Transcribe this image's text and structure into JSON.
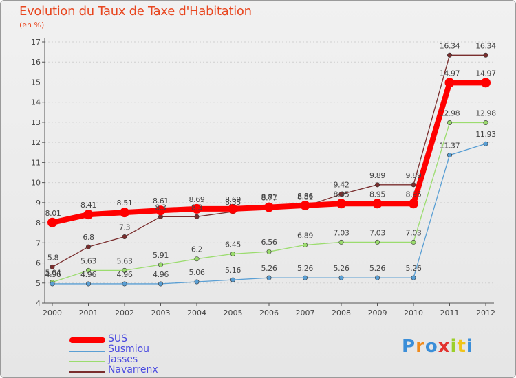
{
  "chart_data": {
    "type": "line",
    "title": "Evolution du Taux de Taxe d'Habitation",
    "ylabel": "(en %)",
    "xlabel": "",
    "ylim": [
      4,
      17
    ],
    "yticks": [
      4,
      5,
      6,
      7,
      8,
      9,
      10,
      11,
      12,
      13,
      14,
      15,
      16,
      17
    ],
    "grid": "horizontal",
    "legend": "bottom-left",
    "x": [
      "2000",
      "2001",
      "2002",
      "2003",
      "2004",
      "2005",
      "2006",
      "2007",
      "2008",
      "2009",
      "2010",
      "2011",
      "2012"
    ],
    "series": [
      {
        "name": "SUS",
        "color": "#ff0000",
        "thick": true,
        "values": [
          8.01,
          8.41,
          8.51,
          8.61,
          8.69,
          8.69,
          8.77,
          8.86,
          8.95,
          8.95,
          8.95,
          14.97,
          14.97
        ],
        "labels": [
          "8.01",
          "8.41",
          "8.51",
          "8.61",
          "8.69",
          "8.69",
          "8.77",
          "8.86",
          "8.95",
          "8.95",
          "8.95",
          "14.97",
          "14.97"
        ]
      },
      {
        "name": "Susmiou",
        "color": "#5a9fd4",
        "thick": false,
        "values": [
          4.96,
          4.96,
          4.96,
          4.96,
          5.06,
          5.16,
          5.26,
          5.26,
          5.26,
          5.26,
          5.26,
          11.37,
          11.93
        ],
        "labels": [
          "4.96",
          "4.96",
          "4.96",
          "4.96",
          "5.06",
          "5.16",
          "5.26",
          "5.26",
          "5.26",
          "5.26",
          "5.26",
          "11.37",
          "11.93"
        ]
      },
      {
        "name": "Jasses",
        "color": "#9bdc6e",
        "thick": false,
        "values": [
          5.04,
          5.63,
          5.63,
          5.91,
          6.2,
          6.45,
          6.56,
          6.89,
          7.03,
          7.03,
          7.03,
          12.98,
          12.98
        ],
        "labels": [
          "5.04",
          "5.63",
          "5.63",
          "5.91",
          "6.2",
          "6.45",
          "6.56",
          "6.89",
          "7.03",
          "7.03",
          "7.03",
          "12.98",
          "12.98"
        ]
      },
      {
        "name": "Navarrenx",
        "color": "#7a2e2e",
        "thick": false,
        "values": [
          5.8,
          6.8,
          7.3,
          8.3,
          8.3,
          8.55,
          8.81,
          8.81,
          9.42,
          9.89,
          9.89,
          16.34,
          16.34
        ],
        "labels": [
          "5.8",
          "6.8",
          "7.3",
          "8.3",
          "8.3",
          "8.55",
          "8.81",
          "8.81",
          "9.42",
          "9.89",
          "9.89",
          "16.34",
          "16.34"
        ]
      }
    ]
  },
  "legend_items": [
    "SUS",
    "Susmiou",
    "Jasses",
    "Navarrenx"
  ],
  "logo": {
    "text": "Proxiti",
    "letter_colors": [
      "#3b8ed8",
      "#f08a1c",
      "#3b8ed8",
      "#e2332f",
      "#9ccf2a",
      "#f0c419",
      "#3b8ed8"
    ]
  }
}
